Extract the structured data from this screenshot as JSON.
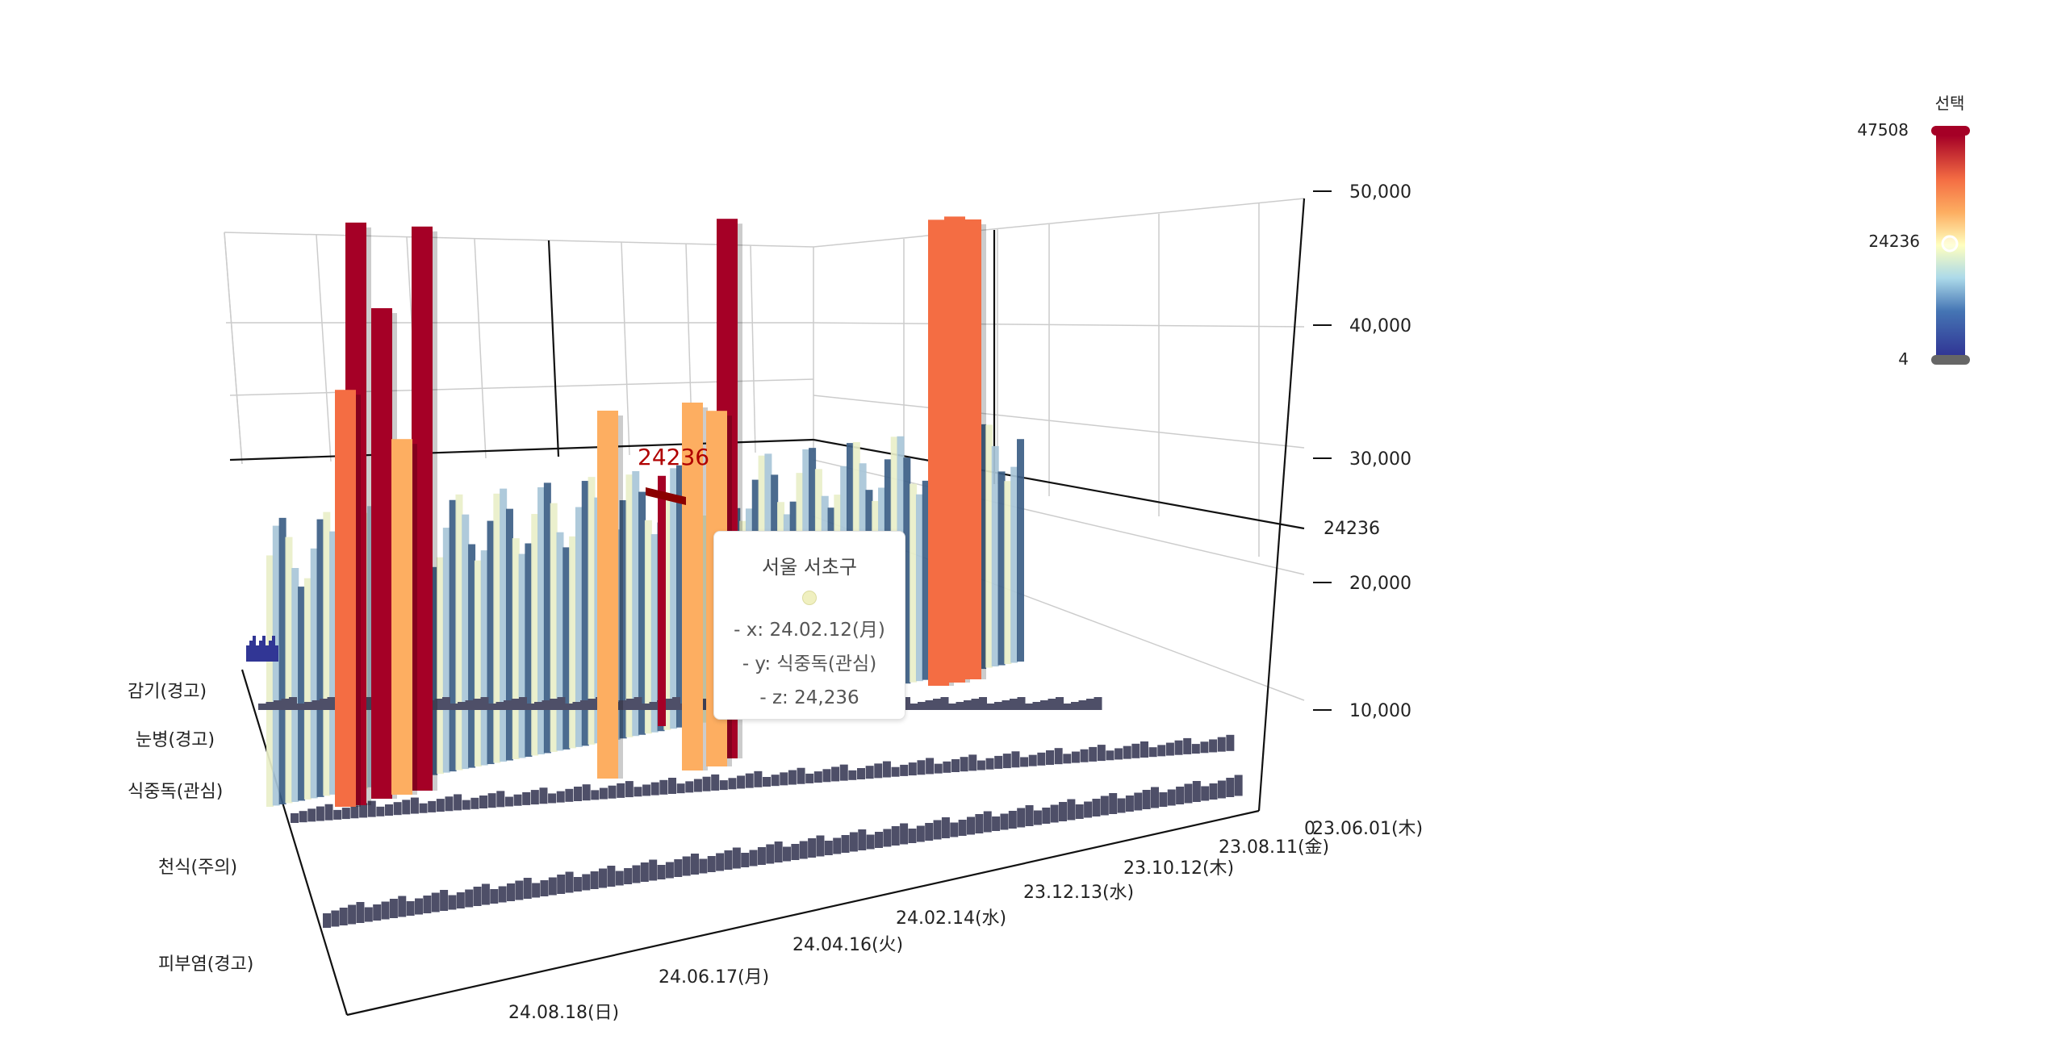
{
  "chart_data": {
    "type": "bar3d",
    "z_axis": {
      "ticks": [
        10000,
        20000,
        30000,
        40000,
        50000
      ],
      "tick_labels": [
        "10,000",
        "20,000",
        "30,000",
        "40,000",
        "50,000"
      ],
      "zlim": [
        0,
        50000
      ],
      "highlight_value_label": "24236"
    },
    "x_axis": {
      "tick_labels": [
        "23.06.01(木)",
        "23.08.11(金)",
        "23.10.12(木)",
        "23.12.13(水)",
        "24.02.14(水)",
        "24.04.16(火)",
        "24.06.17(月)",
        "24.08.18(日)"
      ],
      "zero_label": "0"
    },
    "y_axis": {
      "categories": [
        "감기(경고)",
        "눈병(경고)",
        "식중독(관심)",
        "천식(주의)",
        "피부염(경고)"
      ]
    },
    "series": [
      {
        "name": "감기(경고)",
        "typical_value": 2500,
        "peak_values": []
      },
      {
        "name": "눈병(경고)",
        "typical_value": 25000,
        "peak_values": [
          47508,
          46000,
          44000,
          40000,
          38000,
          35000
        ]
      },
      {
        "name": "식중독(관심)",
        "typical_value": 2500,
        "peak_values": []
      },
      {
        "name": "천식(주의)",
        "typical_value": 3500,
        "peak_values": []
      },
      {
        "name": "피부염(경고)",
        "typical_value": 4000,
        "peak_values": []
      }
    ],
    "highlight": {
      "label": "24236",
      "x": "24.02.12(月)",
      "y": "식중독(관심)",
      "z": 24236
    },
    "colorbar": {
      "title": "선택",
      "max_label": "47508",
      "mid_label": "24236",
      "min_label": "4",
      "max": 47508,
      "min": 4,
      "selected": 24236,
      "colorscale": "RdYlBu_r"
    }
  },
  "tooltip": {
    "title": "서울 서초구",
    "x_line": "- x: 24.02.12(月)",
    "y_line": "- y: 식중독(관심)",
    "z_line": "- z: 24,236"
  },
  "colors": {
    "background": "#ffffff",
    "highlight_text": "#b00000",
    "bar_light": "#e9efc9",
    "bar_dark": "#2b2f5e",
    "floor": "#4a4a5a"
  }
}
